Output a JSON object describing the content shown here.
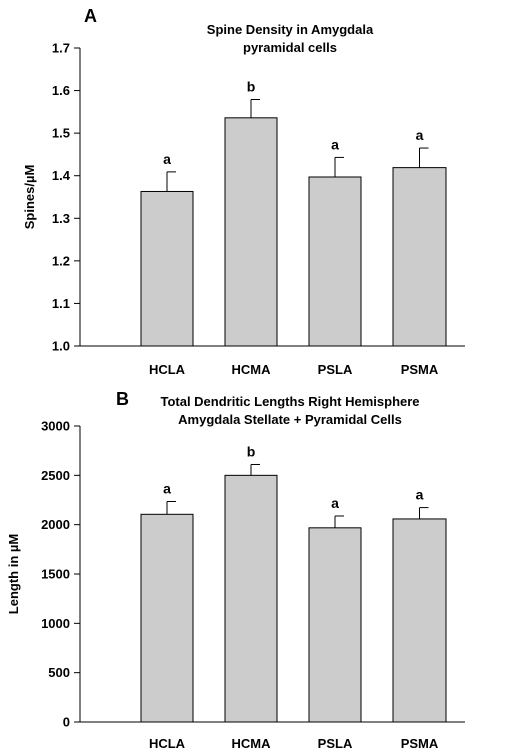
{
  "chart_data": [
    {
      "type": "bar",
      "panel": "A",
      "title_lines": [
        "Spine Density in Amygdala",
        "pyramidal cells"
      ],
      "ylabel": "Spines/µM",
      "xlabel": "",
      "categories": [
        "HCLA",
        "HCMA",
        "PSLA",
        "PSMA"
      ],
      "values": [
        1.363,
        1.536,
        1.397,
        1.419
      ],
      "errors": [
        0.046,
        0.043,
        0.046,
        0.046
      ],
      "significance": [
        "a",
        "b",
        "a",
        "a"
      ],
      "ylim": [
        1.0,
        1.7
      ],
      "yticks": [
        "1.0",
        "1.1",
        "1.2",
        "1.3",
        "1.4",
        "1.5",
        "1.6",
        "1.7"
      ],
      "bar_color": "#cccccc",
      "grid": false
    },
    {
      "type": "bar",
      "panel": "B",
      "title_lines": [
        "Total Dendritic Lengths Right Hemisphere",
        "Amygdala Stellate + Pyramidal Cells"
      ],
      "ylabel": "Length in µM",
      "xlabel": "",
      "categories": [
        "HCLA",
        "HCMA",
        "PSLA",
        "PSMA"
      ],
      "values": [
        2105,
        2500,
        1968,
        2058
      ],
      "errors": [
        130,
        110,
        120,
        115
      ],
      "significance": [
        "a",
        "b",
        "a",
        "a"
      ],
      "ylim": [
        0,
        3000
      ],
      "yticks": [
        "0",
        "500",
        "1000",
        "1500",
        "2000",
        "2500",
        "3000"
      ],
      "bar_color": "#cccccc",
      "grid": false
    }
  ]
}
